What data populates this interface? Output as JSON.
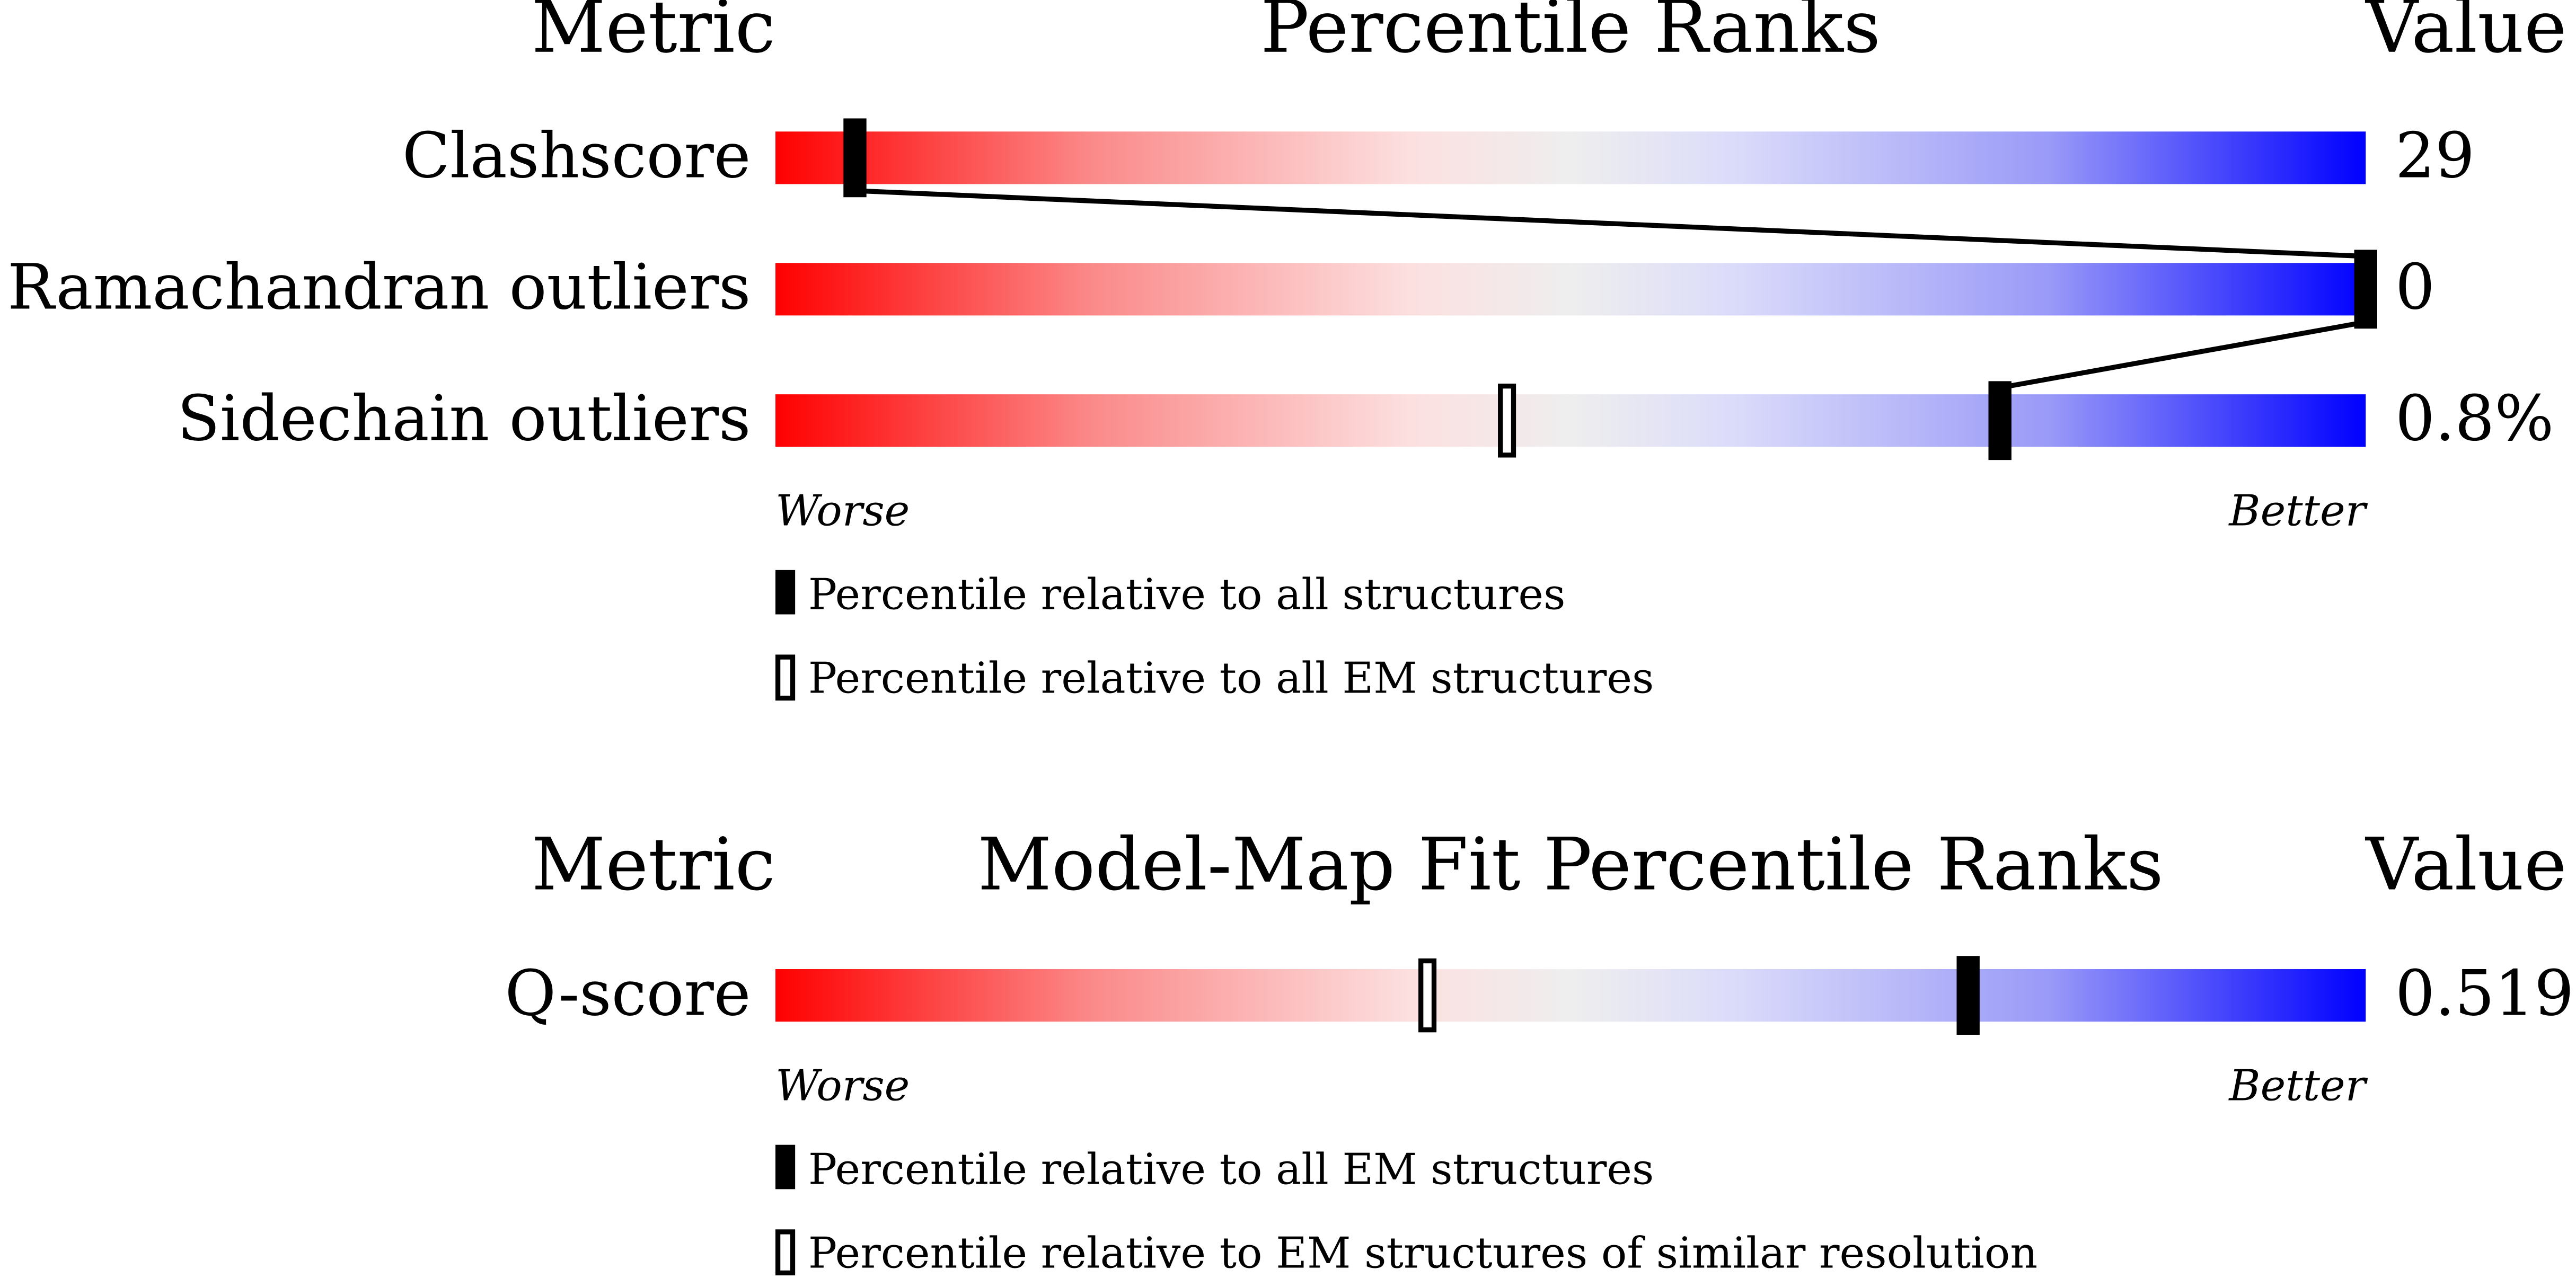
{
  "panels": [
    {
      "header": {
        "metric": "Metric",
        "title": "Percentile Ranks",
        "value": "Value"
      },
      "xlim": [
        0,
        100
      ],
      "rows": [
        {
          "metric": "Clashscore",
          "value": "29",
          "percentile_filled": 5
        },
        {
          "metric": "Ramachandran outliers",
          "value": "0",
          "percentile_filled": 100
        },
        {
          "metric": "Sidechain outliers",
          "value": "0.8%",
          "percentile_filled": 77,
          "percentile_hollow": 46
        }
      ],
      "scale": {
        "worse": "Worse",
        "better": "Better"
      },
      "legend": {
        "filled": "Percentile relative to all structures",
        "hollow": "Percentile relative to all EM structures"
      }
    },
    {
      "header": {
        "metric": "Metric",
        "title": "Model-Map Fit Percentile Ranks",
        "value": "Value"
      },
      "xlim": [
        0,
        100
      ],
      "rows": [
        {
          "metric": "Q-score",
          "value": "0.519",
          "percentile_filled": 75,
          "percentile_hollow": 41
        }
      ],
      "scale": {
        "worse": "Worse",
        "better": "Better"
      },
      "legend": {
        "filled": "Percentile relative to all EM structures",
        "hollow": "Percentile relative to EM structures of similar resolution"
      }
    }
  ]
}
